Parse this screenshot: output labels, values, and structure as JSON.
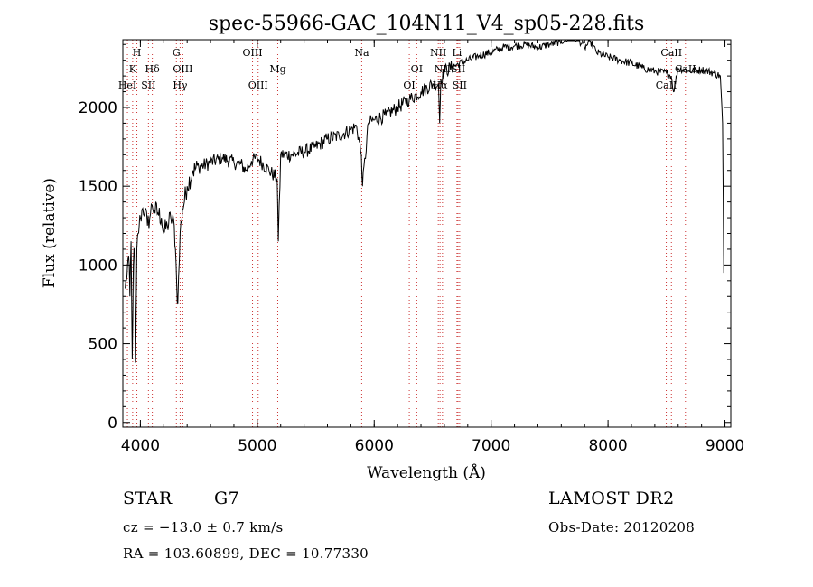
{
  "chart_data": {
    "type": "line",
    "title": "spec-55966-GAC_104N11_V4_sp05-228.fits",
    "xlabel": "Wavelength (Å)",
    "ylabel": "Flux (relative)",
    "xlim": [
      3850,
      9050
    ],
    "ylim": [
      -30,
      2430
    ],
    "xticks": [
      4000,
      5000,
      6000,
      7000,
      8000,
      9000
    ],
    "yticks": [
      0,
      500,
      1000,
      1500,
      2000
    ],
    "grid": false,
    "line_color": "#000000",
    "marker_color": "#cc3333",
    "spectrum": {
      "x": [
        3870,
        3880,
        3890,
        3900,
        3910,
        3920,
        3930,
        3940,
        3950,
        3960,
        3970,
        3980,
        3990,
        4000,
        4020,
        4040,
        4060,
        4080,
        4100,
        4120,
        4150,
        4180,
        4200,
        4230,
        4260,
        4290,
        4300,
        4310,
        4320,
        4340,
        4360,
        4400,
        4450,
        4500,
        4600,
        4700,
        4800,
        4860,
        4900,
        4950,
        5000,
        5100,
        5170,
        5180,
        5200,
        5300,
        5400,
        5500,
        5600,
        5700,
        5800,
        5850,
        5890,
        5900,
        5950,
        6000,
        6100,
        6200,
        6300,
        6400,
        6500,
        6550,
        6560,
        6570,
        6600,
        6700,
        6800,
        6900,
        7000,
        7100,
        7200,
        7300,
        7400,
        7500,
        7600,
        7700,
        7750,
        7800,
        7850,
        7900,
        8000,
        8100,
        8200,
        8300,
        8400,
        8500,
        8540,
        8560,
        8600,
        8700,
        8800,
        8900,
        8960,
        8980,
        8990
      ],
      "y": [
        850,
        900,
        1000,
        1050,
        800,
        1150,
        400,
        1000,
        1100,
        380,
        1100,
        1200,
        1250,
        1300,
        1360,
        1350,
        1250,
        1300,
        1380,
        1350,
        1330,
        1300,
        1200,
        1250,
        1300,
        1250,
        1100,
        900,
        750,
        1200,
        1350,
        1500,
        1600,
        1620,
        1650,
        1680,
        1650,
        1640,
        1600,
        1660,
        1680,
        1600,
        1550,
        1150,
        1700,
        1700,
        1720,
        1750,
        1800,
        1820,
        1860,
        1880,
        1700,
        1500,
        1900,
        1920,
        1950,
        2000,
        2050,
        2100,
        2150,
        2150,
        1900,
        2180,
        2230,
        2270,
        2300,
        2330,
        2350,
        2380,
        2390,
        2400,
        2380,
        2400,
        2420,
        2450,
        2430,
        2380,
        2420,
        2350,
        2320,
        2300,
        2280,
        2250,
        2230,
        2220,
        2200,
        2100,
        2250,
        2230,
        2240,
        2220,
        2200,
        1900,
        950
      ]
    },
    "line_markers": [
      {
        "label": "H",
        "wavelength": 3970,
        "row": 0
      },
      {
        "label": "K",
        "wavelength": 3934,
        "row": 1
      },
      {
        "label": "HeI",
        "wavelength": 3889,
        "row": 2
      },
      {
        "label": "Hδ",
        "wavelength": 4102,
        "row": 1
      },
      {
        "label": "SII",
        "wavelength": 4069,
        "row": 2
      },
      {
        "label": "G",
        "wavelength": 4308,
        "row": 0
      },
      {
        "label": "OIII",
        "wavelength": 4363,
        "row": 1
      },
      {
        "label": "Hγ",
        "wavelength": 4340,
        "row": 2
      },
      {
        "label": "OIII",
        "wavelength": 4959,
        "row": 0
      },
      {
        "label": "Mg",
        "wavelength": 5175,
        "row": 1
      },
      {
        "label": "OIII",
        "wavelength": 5007,
        "row": 2
      },
      {
        "label": "Na",
        "wavelength": 5893,
        "row": 0
      },
      {
        "label": "OI",
        "wavelength": 6364,
        "row": 1
      },
      {
        "label": "OI",
        "wavelength": 6300,
        "row": 2
      },
      {
        "label": "NII",
        "wavelength": 6548,
        "row": 0
      },
      {
        "label": "Li",
        "wavelength": 6708,
        "row": 0
      },
      {
        "label": "NII",
        "wavelength": 6584,
        "row": 1
      },
      {
        "label": "SII",
        "wavelength": 6717,
        "row": 1
      },
      {
        "label": "Hα",
        "wavelength": 6563,
        "row": 2
      },
      {
        "label": "SII",
        "wavelength": 6731,
        "row": 2
      },
      {
        "label": "CaII",
        "wavelength": 8542,
        "row": 0
      },
      {
        "label": "CaII",
        "wavelength": 8662,
        "row": 1
      },
      {
        "label": "CaII",
        "wavelength": 8498,
        "row": 2
      }
    ]
  },
  "info": {
    "object_class": "STAR",
    "subclass": "G7",
    "survey": "LAMOST DR2",
    "redshift": "cz = −13.0 ± 0.7 km/s",
    "obs_date": "Obs-Date: 20120208",
    "coords": "RA = 103.60899, DEC =  10.77330"
  }
}
